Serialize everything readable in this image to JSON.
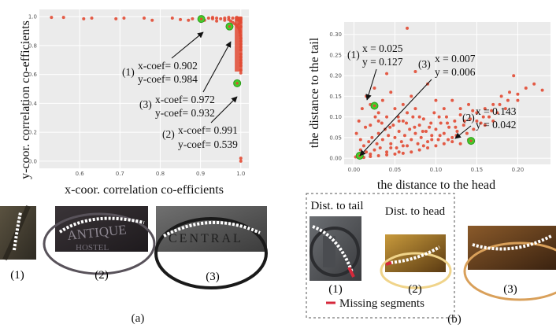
{
  "colors": {
    "point": "#e24a33",
    "highlight": "#44cc2a",
    "panel_bg": "#ebebeb",
    "grid": "#ffffff",
    "missing": "#d6283b"
  },
  "chart_data": [
    {
      "type": "scatter",
      "title": "",
      "xlabel": "x-coor. correlation co-efficients",
      "ylabel": "y-coor. correlation co-efficients",
      "xlim": [
        0.5,
        1.02
      ],
      "ylim": [
        -0.05,
        1.05
      ],
      "grid": true,
      "x_ticks": [
        "0.6",
        "0.7",
        "0.8",
        "0.9",
        "1.0"
      ],
      "y_ticks": [
        "0.0",
        "0.2",
        "0.4",
        "0.6",
        "0.8",
        "1.0"
      ],
      "x_tick_values": [
        0.6,
        0.7,
        0.8,
        0.9,
        1.0
      ],
      "y_tick_values": [
        0.0,
        0.2,
        0.4,
        0.6,
        0.8,
        1.0
      ],
      "points": [
        [
          0.53,
          0.995
        ],
        [
          0.56,
          0.995
        ],
        [
          0.61,
          0.985
        ],
        [
          0.63,
          0.99
        ],
        [
          0.69,
          0.985
        ],
        [
          0.71,
          0.99
        ],
        [
          0.78,
          0.975
        ],
        [
          0.83,
          0.99
        ],
        [
          0.85,
          0.98
        ],
        [
          0.87,
          0.975
        ],
        [
          0.88,
          0.985
        ],
        [
          0.9,
          0.99
        ],
        [
          0.92,
          0.99
        ],
        [
          0.93,
          0.995
        ],
        [
          0.94,
          0.99
        ],
        [
          0.95,
          0.985
        ],
        [
          0.96,
          0.99
        ],
        [
          0.97,
          0.98
        ],
        [
          0.975,
          0.97
        ],
        [
          0.98,
          0.96
        ],
        [
          0.985,
          0.95
        ],
        [
          0.99,
          0.94
        ],
        [
          0.992,
          0.93
        ],
        [
          0.995,
          0.92
        ],
        [
          0.997,
          0.91
        ],
        [
          0.998,
          0.89
        ],
        [
          0.999,
          0.87
        ],
        [
          1.0,
          0.85
        ],
        [
          1.0,
          0.83
        ],
        [
          1.0,
          0.81
        ],
        [
          1.0,
          0.79
        ],
        [
          1.0,
          0.77
        ],
        [
          1.0,
          0.74
        ],
        [
          1.0,
          0.72
        ],
        [
          1.0,
          0.7
        ],
        [
          1.0,
          0.68
        ],
        [
          1.0,
          0.66
        ],
        [
          1.0,
          0.63
        ],
        [
          1.0,
          0.61
        ],
        [
          0.995,
          0.99
        ],
        [
          1.0,
          0.99
        ],
        [
          0.99,
          0.995
        ],
        [
          0.98,
          0.99
        ],
        [
          0.97,
          0.995
        ],
        [
          0.999,
          0.97
        ],
        [
          1.0,
          0.96
        ],
        [
          0.996,
          0.95
        ],
        [
          1.0,
          0.93
        ],
        [
          0.998,
          0.9
        ],
        [
          0.96,
          0.975
        ],
        [
          0.94,
          0.97
        ],
        [
          0.93,
          0.985
        ],
        [
          0.91,
          0.975
        ],
        [
          1.0,
          0.02
        ],
        [
          1.0,
          0.0
        ],
        [
          0.76,
          0.99
        ],
        [
          0.99,
          0.98
        ],
        [
          1.0,
          0.98
        ],
        [
          0.995,
          0.975
        ]
      ],
      "highlighted": [
        {
          "id": "(1)",
          "x": 0.902,
          "y": 0.984
        },
        {
          "id": "(3)",
          "x": 0.972,
          "y": 0.932
        },
        {
          "id": "(2)",
          "x": 0.991,
          "y": 0.539
        }
      ],
      "annotations": [
        {
          "id": "(1)",
          "line1": "x-coef= 0.902",
          "line2": "y-coef= 0.984"
        },
        {
          "id": "(3)",
          "line1": "x-coef= 0.972",
          "line2": "y-coef= 0.932"
        },
        {
          "id": "(2)",
          "line1": "x-coef= 0.991",
          "line2": "y-coef= 0.539"
        }
      ]
    },
    {
      "type": "scatter",
      "title": "",
      "xlabel": "the distance to the head",
      "ylabel": "the distance to the tail",
      "xlim": [
        -0.012,
        0.24
      ],
      "ylim": [
        -0.015,
        0.33
      ],
      "grid": true,
      "x_ticks": [
        "0.00",
        "0.05",
        "0.10",
        "0.15",
        "0.20"
      ],
      "y_ticks": [
        "0.00",
        "0.05",
        "0.10",
        "0.15",
        "0.20",
        "0.25",
        "0.30"
      ],
      "x_tick_values": [
        0.0,
        0.05,
        0.1,
        0.15,
        0.2
      ],
      "y_tick_values": [
        0.0,
        0.05,
        0.1,
        0.15,
        0.2,
        0.25,
        0.3
      ],
      "points": [
        [
          0.002,
          0.003
        ],
        [
          0.005,
          0.01
        ],
        [
          0.008,
          0.02
        ],
        [
          0.01,
          0.005
        ],
        [
          0.012,
          0.03
        ],
        [
          0.015,
          0.015
        ],
        [
          0.018,
          0.04
        ],
        [
          0.02,
          0.01
        ],
        [
          0.022,
          0.05
        ],
        [
          0.025,
          0.02
        ],
        [
          0.028,
          0.035
        ],
        [
          0.03,
          0.06
        ],
        [
          0.032,
          0.025
        ],
        [
          0.035,
          0.045
        ],
        [
          0.038,
          0.07
        ],
        [
          0.04,
          0.015
        ],
        [
          0.042,
          0.055
        ],
        [
          0.045,
          0.035
        ],
        [
          0.048,
          0.08
        ],
        [
          0.05,
          0.05
        ],
        [
          0.052,
          0.025
        ],
        [
          0.055,
          0.065
        ],
        [
          0.058,
          0.04
        ],
        [
          0.06,
          0.09
        ],
        [
          0.062,
          0.055
        ],
        [
          0.065,
          0.03
        ],
        [
          0.068,
          0.07
        ],
        [
          0.07,
          0.045
        ],
        [
          0.072,
          0.1
        ],
        [
          0.075,
          0.06
        ],
        [
          0.078,
          0.035
        ],
        [
          0.08,
          0.08
        ],
        [
          0.082,
          0.05
        ],
        [
          0.085,
          0.095
        ],
        [
          0.088,
          0.065
        ],
        [
          0.09,
          0.04
        ],
        [
          0.092,
          0.075
        ],
        [
          0.095,
          0.055
        ],
        [
          0.098,
          0.11
        ],
        [
          0.1,
          0.07
        ],
        [
          0.103,
          0.045
        ],
        [
          0.106,
          0.085
        ],
        [
          0.11,
          0.06
        ],
        [
          0.113,
          0.1
        ],
        [
          0.116,
          0.075
        ],
        [
          0.12,
          0.05
        ],
        [
          0.123,
          0.09
        ],
        [
          0.126,
          0.065
        ],
        [
          0.13,
          0.105
        ],
        [
          0.134,
          0.08
        ],
        [
          0.138,
          0.06
        ],
        [
          0.142,
          0.095
        ],
        [
          0.146,
          0.07
        ],
        [
          0.15,
          0.11
        ],
        [
          0.155,
          0.085
        ],
        [
          0.16,
          0.12
        ],
        [
          0.165,
          0.1
        ],
        [
          0.17,
          0.13
        ],
        [
          0.175,
          0.11
        ],
        [
          0.18,
          0.15
        ],
        [
          0.185,
          0.12
        ],
        [
          0.19,
          0.16
        ],
        [
          0.195,
          0.2
        ],
        [
          0.2,
          0.14
        ],
        [
          0.21,
          0.17
        ],
        [
          0.22,
          0.18
        ],
        [
          0.23,
          0.165
        ],
        [
          0.003,
          0.06
        ],
        [
          0.006,
          0.09
        ],
        [
          0.01,
          0.12
        ],
        [
          0.015,
          0.15
        ],
        [
          0.02,
          0.13
        ],
        [
          0.025,
          0.17
        ],
        [
          0.03,
          0.11
        ],
        [
          0.035,
          0.14
        ],
        [
          0.04,
          0.1
        ],
        [
          0.045,
          0.16
        ],
        [
          0.05,
          0.12
        ],
        [
          0.055,
          0.09
        ],
        [
          0.06,
          0.13
        ],
        [
          0.065,
          0.11
        ],
        [
          0.07,
          0.15
        ],
        [
          0.075,
          0.12
        ],
        [
          0.08,
          0.1
        ],
        [
          0.065,
          0.315
        ],
        [
          0.04,
          0.205
        ],
        [
          0.075,
          0.21
        ],
        [
          0.09,
          0.18
        ],
        [
          0.1,
          0.14
        ],
        [
          0.11,
          0.12
        ],
        [
          0.12,
          0.14
        ],
        [
          0.13,
          0.12
        ],
        [
          0.14,
          0.13
        ],
        [
          0.15,
          0.09
        ],
        [
          0.16,
          0.08
        ],
        [
          0.17,
          0.09
        ],
        [
          0.012,
          0.002
        ],
        [
          0.02,
          0.004
        ],
        [
          0.03,
          0.006
        ],
        [
          0.04,
          0.008
        ],
        [
          0.05,
          0.01
        ],
        [
          0.06,
          0.012
        ],
        [
          0.07,
          0.015
        ],
        [
          0.08,
          0.02
        ],
        [
          0.09,
          0.025
        ],
        [
          0.1,
          0.03
        ],
        [
          0.11,
          0.035
        ],
        [
          0.12,
          0.04
        ],
        [
          0.13,
          0.035
        ],
        [
          0.14,
          0.045
        ],
        [
          0.02,
          0.08
        ],
        [
          0.03,
          0.09
        ],
        [
          0.045,
          0.025
        ],
        [
          0.055,
          0.015
        ],
        [
          0.06,
          0.03
        ],
        [
          0.085,
          0.03
        ],
        [
          0.095,
          0.045
        ],
        [
          0.105,
          0.055
        ],
        [
          0.115,
          0.045
        ],
        [
          0.125,
          0.055
        ],
        [
          0.008,
          0.045
        ],
        [
          0.014,
          0.075
        ],
        [
          0.026,
          0.1
        ],
        [
          0.034,
          0.085
        ],
        [
          0.044,
          0.075
        ],
        [
          0.054,
          0.1
        ],
        [
          0.064,
          0.085
        ],
        [
          0.074,
          0.075
        ],
        [
          0.084,
          0.065
        ],
        [
          0.094,
          0.085
        ],
        [
          0.104,
          0.1
        ],
        [
          0.114,
          0.085
        ],
        [
          0.124,
          0.075
        ],
        [
          0.135,
          0.09
        ],
        [
          0.145,
          0.115
        ],
        [
          0.158,
          0.1
        ],
        [
          0.168,
          0.115
        ],
        [
          0.178,
          0.13
        ],
        [
          0.188,
          0.14
        ],
        [
          0.2,
          0.155
        ]
      ],
      "highlighted": [
        {
          "id": "(1)",
          "x": 0.025,
          "y": 0.127
        },
        {
          "id": "(3)",
          "x": 0.007,
          "y": 0.006
        },
        {
          "id": "(2)",
          "x": 0.143,
          "y": 0.042
        }
      ],
      "annotations": [
        {
          "id": "(1)",
          "line1": "x = 0.025",
          "line2": "y = 0.127"
        },
        {
          "id": "(3)",
          "line1": "x = 0.007",
          "line2": "y = 0.006"
        },
        {
          "id": "(2)",
          "line1": "x = 0.143",
          "line2": "y = 0.042"
        }
      ]
    }
  ],
  "left_panel": {
    "crop_labels": [
      "(1)",
      "(2)",
      "(3)"
    ],
    "caption": "(a)"
  },
  "right_panel": {
    "box_titles": [
      "Dist. to tail",
      "Dist. to head"
    ],
    "crop_labels": [
      "(1)",
      "(2)",
      "(3)"
    ],
    "legend_label": "Missing segments",
    "caption": "(b)"
  }
}
